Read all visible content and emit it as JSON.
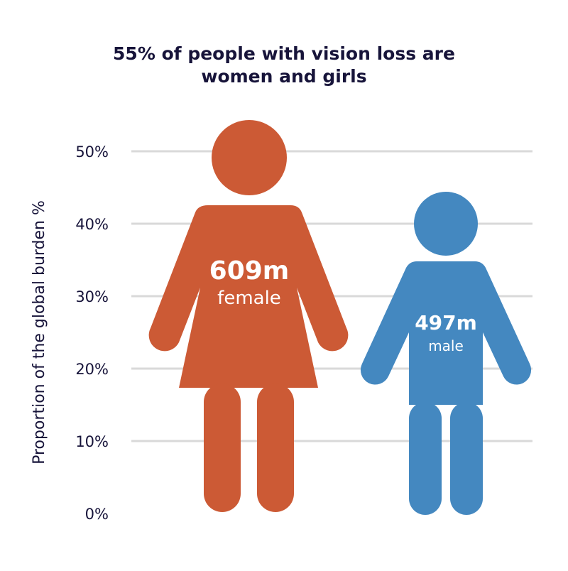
{
  "chart_data": {
    "type": "bar",
    "title_lines": [
      "55% of people with vision loss are",
      "women and girls"
    ],
    "ylabel": "Proportion of the global burden %",
    "ylim": [
      0,
      50
    ],
    "yticks": [
      "0%",
      "10%",
      "20%",
      "30%",
      "40%",
      "50%"
    ],
    "ytick_values": [
      0,
      10,
      20,
      30,
      40,
      50
    ],
    "grid": true,
    "series": [
      {
        "category": "female",
        "value_label": "609m",
        "value_pct": 55,
        "color": "#cc5a35",
        "icon": "female-figure-icon"
      },
      {
        "category": "male",
        "value_label": "497m",
        "value_pct": 45,
        "color": "#4488c0",
        "icon": "male-figure-icon"
      }
    ]
  }
}
